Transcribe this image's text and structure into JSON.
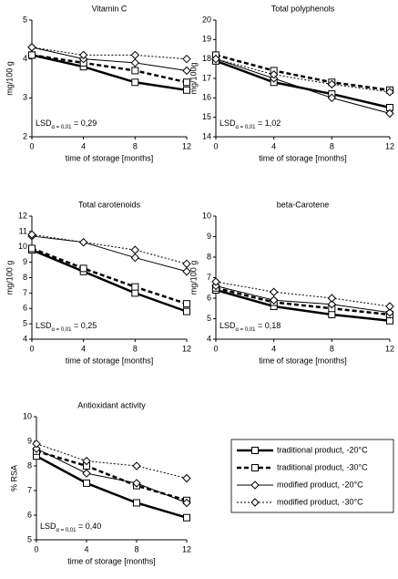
{
  "chart_data": [
    {
      "type": "line",
      "title": "Vitamin C",
      "ylabel": "mg/100 g",
      "xlabel": "time of storage [months]",
      "x": [
        0,
        4,
        8,
        12
      ],
      "xlim": [
        0,
        12
      ],
      "xticks": [
        0,
        4,
        8,
        12
      ],
      "ylim": [
        2,
        5
      ],
      "yticks": [
        2,
        3,
        4,
        5
      ],
      "annotation": {
        "main": "LSD",
        "sub": "α = 0,01",
        "rest": " = 0,29"
      },
      "series": [
        {
          "values": [
            4.1,
            3.8,
            3.4,
            3.2
          ]
        },
        {
          "values": [
            4.1,
            3.9,
            3.7,
            3.4
          ]
        },
        {
          "values": [
            4.3,
            4.0,
            3.9,
            3.7
          ]
        },
        {
          "values": [
            4.3,
            4.1,
            4.1,
            4.0
          ]
        }
      ]
    },
    {
      "type": "line",
      "title": "Total polyphenols",
      "ylabel": "mg/100g",
      "xlabel": "time of storage [months]",
      "x": [
        0,
        4,
        8,
        12
      ],
      "xlim": [
        0,
        12
      ],
      "xticks": [
        0,
        4,
        8,
        12
      ],
      "ylim": [
        14,
        20
      ],
      "yticks": [
        14,
        15,
        16,
        17,
        18,
        19,
        20
      ],
      "annotation": {
        "main": "LSD",
        "sub": "α = 0,01",
        "rest": " = 1,02"
      },
      "series": [
        {
          "values": [
            17.9,
            16.8,
            16.2,
            15.5
          ]
        },
        {
          "values": [
            18.2,
            17.4,
            16.8,
            16.4
          ]
        },
        {
          "values": [
            18.0,
            17.0,
            16.0,
            15.2
          ]
        },
        {
          "values": [
            18.0,
            17.2,
            16.7,
            16.3
          ]
        }
      ]
    },
    {
      "type": "line",
      "title": "Total carotenoids",
      "ylabel": "mg/100 g",
      "xlabel": "time of storage [months]",
      "x": [
        0,
        4,
        8,
        12
      ],
      "xlim": [
        0,
        12
      ],
      "xticks": [
        0,
        4,
        8,
        12
      ],
      "ylim": [
        4,
        12
      ],
      "yticks": [
        4,
        5,
        6,
        7,
        8,
        9,
        10,
        11,
        12
      ],
      "annotation": {
        "main": "LSD",
        "sub": "α = 0,01",
        "rest": " = 0,25"
      },
      "series": [
        {
          "values": [
            9.8,
            8.4,
            7.0,
            5.8
          ]
        },
        {
          "values": [
            9.9,
            8.6,
            7.4,
            6.3
          ]
        },
        {
          "values": [
            10.7,
            10.3,
            9.3,
            8.4
          ]
        },
        {
          "values": [
            10.8,
            10.3,
            9.8,
            8.9
          ]
        }
      ]
    },
    {
      "type": "line",
      "title": "beta-Carotene",
      "ylabel": "mg/100 g",
      "xlabel": "time of storage [months]",
      "x": [
        0,
        4,
        8,
        12
      ],
      "xlim": [
        0,
        12
      ],
      "xticks": [
        0,
        4,
        8,
        12
      ],
      "ylim": [
        4,
        10
      ],
      "yticks": [
        4,
        5,
        6,
        7,
        8,
        9,
        10
      ],
      "annotation": {
        "main": "LSD",
        "sub": "α = 0,01",
        "rest": " = 0,18"
      },
      "series": [
        {
          "values": [
            6.4,
            5.6,
            5.2,
            4.9
          ]
        },
        {
          "values": [
            6.5,
            5.8,
            5.5,
            5.2
          ]
        },
        {
          "values": [
            6.6,
            5.9,
            5.7,
            5.3
          ]
        },
        {
          "values": [
            6.8,
            6.3,
            6.0,
            5.6
          ]
        }
      ]
    },
    {
      "type": "line",
      "title": "Antioxidant activity",
      "ylabel": "% RSA",
      "xlabel": "time of storage [months]",
      "x": [
        0,
        4,
        8,
        12
      ],
      "xlim": [
        0,
        12
      ],
      "xticks": [
        0,
        4,
        8,
        12
      ],
      "ylim": [
        5,
        10
      ],
      "yticks": [
        5,
        6,
        7,
        8,
        9,
        10
      ],
      "annotation": {
        "main": "LSD",
        "sub": "α = 0,01",
        "rest": " = 0,40"
      },
      "series": [
        {
          "values": [
            8.4,
            7.3,
            6.5,
            5.9
          ]
        },
        {
          "values": [
            8.6,
            8.0,
            7.2,
            6.6
          ]
        },
        {
          "values": [
            8.7,
            7.7,
            7.3,
            6.5
          ]
        },
        {
          "values": [
            8.9,
            8.2,
            8.0,
            7.5
          ]
        }
      ]
    }
  ],
  "legend": [
    {
      "name": "traditional product, -20°C",
      "color": "#000000",
      "width": 2.5,
      "dash": "none",
      "marker": "square"
    },
    {
      "name": "traditional product, -30°C",
      "color": "#000000",
      "width": 2.5,
      "dash": "5,3",
      "marker": "square"
    },
    {
      "name": "modified product, -20°C",
      "color": "#000000",
      "width": 1,
      "dash": "none",
      "marker": "diamond"
    },
    {
      "name": "modified product, -30°C",
      "color": "#000000",
      "width": 1,
      "dash": "2,2",
      "marker": "diamond"
    }
  ]
}
